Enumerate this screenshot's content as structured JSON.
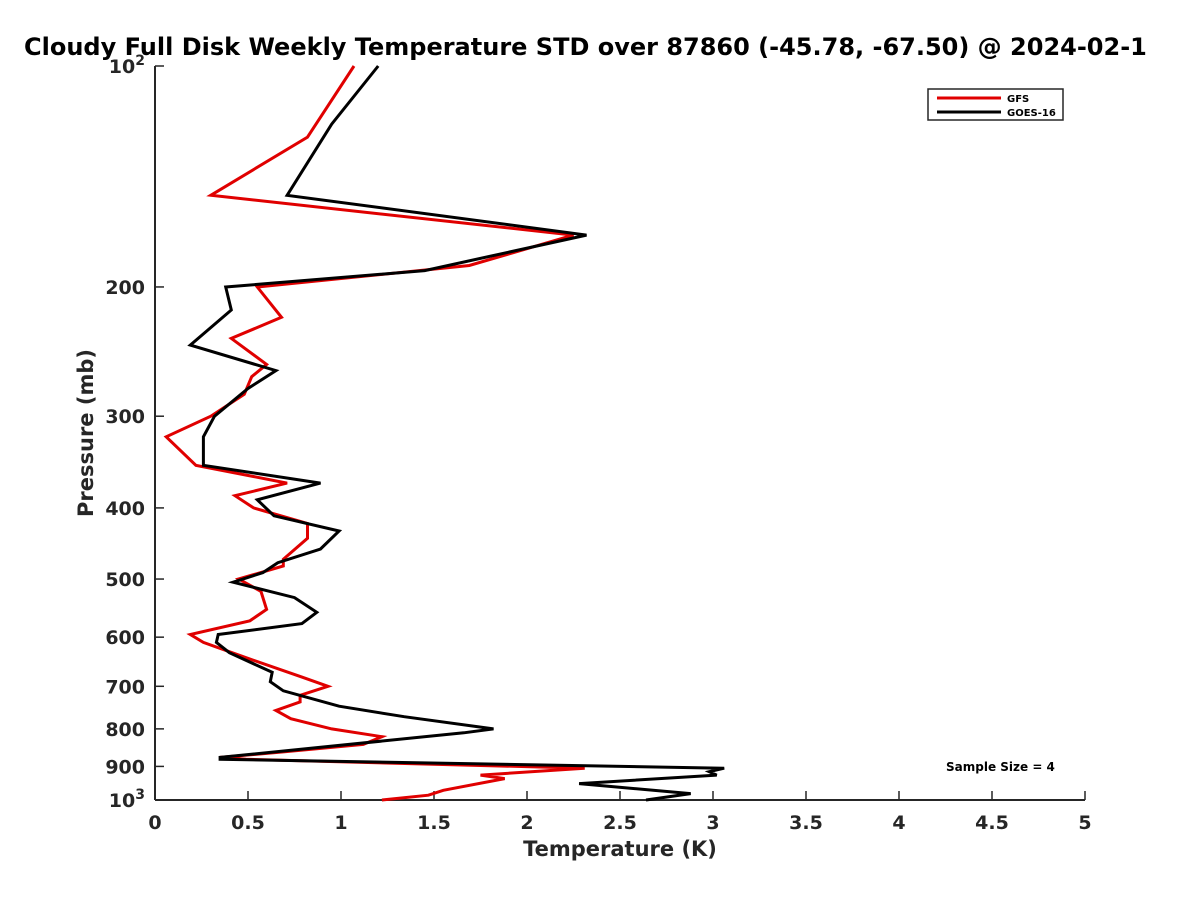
{
  "chart_data": {
    "type": "line",
    "title": "Cloudy Full Disk Weekly Temperature STD over 87860 (-45.78, -67.50) @ 2024-02-1",
    "xlabel": "Temperature (K)",
    "ylabel": "Pressure (mb)",
    "xlim": [
      0,
      5
    ],
    "ylim": [
      100,
      1000
    ],
    "y_scale": "log",
    "y_reversed": true,
    "grid": false,
    "legend_position": "top-right",
    "x_ticks": [
      "0",
      "0.5",
      "1",
      "1.5",
      "2",
      "2.5",
      "3",
      "3.5",
      "4",
      "4.5",
      "5"
    ],
    "x_tick_values": [
      0,
      0.5,
      1,
      1.5,
      2,
      2.5,
      3,
      3.5,
      4,
      4.5,
      5
    ],
    "y_ticks": [
      {
        "value": 100,
        "label": "10",
        "sup": "2"
      },
      {
        "value": 200,
        "label": "200",
        "sup": ""
      },
      {
        "value": 300,
        "label": "300",
        "sup": ""
      },
      {
        "value": 400,
        "label": "400",
        "sup": ""
      },
      {
        "value": 500,
        "label": "500",
        "sup": ""
      },
      {
        "value": 600,
        "label": "600",
        "sup": ""
      },
      {
        "value": 700,
        "label": "700",
        "sup": ""
      },
      {
        "value": 800,
        "label": "800",
        "sup": ""
      },
      {
        "value": 900,
        "label": "900",
        "sup": ""
      },
      {
        "value": 1000,
        "label": "10",
        "sup": "3"
      }
    ],
    "annotation": "Sample Size = 4",
    "series": [
      {
        "name": "GFS",
        "color": "#e00000",
        "points": [
          [
            1.07,
            100
          ],
          [
            0.82,
            125
          ],
          [
            0.3,
            150
          ],
          [
            2.25,
            170
          ],
          [
            1.69,
            187
          ],
          [
            0.55,
            200
          ],
          [
            0.68,
            220
          ],
          [
            0.41,
            235
          ],
          [
            0.6,
            255
          ],
          [
            0.52,
            265
          ],
          [
            0.48,
            280
          ],
          [
            0.3,
            300
          ],
          [
            0.06,
            320
          ],
          [
            0.22,
            350
          ],
          [
            0.71,
            370
          ],
          [
            0.43,
            385
          ],
          [
            0.53,
            400
          ],
          [
            0.82,
            420
          ],
          [
            0.82,
            440
          ],
          [
            0.69,
            470
          ],
          [
            0.69,
            480
          ],
          [
            0.45,
            500
          ],
          [
            0.57,
            520
          ],
          [
            0.6,
            550
          ],
          [
            0.51,
            570
          ],
          [
            0.19,
            595
          ],
          [
            0.26,
            610
          ],
          [
            0.49,
            640
          ],
          [
            0.79,
            680
          ],
          [
            0.93,
            700
          ],
          [
            0.78,
            720
          ],
          [
            0.78,
            735
          ],
          [
            0.65,
            755
          ],
          [
            0.73,
            775
          ],
          [
            0.95,
            800
          ],
          [
            1.22,
            820
          ],
          [
            1.12,
            840
          ],
          [
            0.69,
            860
          ],
          [
            0.35,
            875
          ],
          [
            0.49,
            880
          ],
          [
            2.31,
            905
          ],
          [
            1.75,
            925
          ],
          [
            1.88,
            935
          ],
          [
            1.55,
            970
          ],
          [
            1.47,
            985
          ],
          [
            1.22,
            1000
          ]
        ]
      },
      {
        "name": "GOES-16",
        "color": "#000000",
        "points": [
          [
            1.2,
            100
          ],
          [
            0.95,
            120
          ],
          [
            0.71,
            150
          ],
          [
            2.32,
            170
          ],
          [
            1.45,
            190
          ],
          [
            0.38,
            200
          ],
          [
            0.41,
            215
          ],
          [
            0.19,
            240
          ],
          [
            0.65,
            260
          ],
          [
            0.5,
            275
          ],
          [
            0.32,
            300
          ],
          [
            0.26,
            320
          ],
          [
            0.26,
            350
          ],
          [
            0.89,
            370
          ],
          [
            0.55,
            390
          ],
          [
            0.64,
            410
          ],
          [
            0.99,
            430
          ],
          [
            0.89,
            455
          ],
          [
            0.66,
            475
          ],
          [
            0.58,
            490
          ],
          [
            0.42,
            505
          ],
          [
            0.75,
            530
          ],
          [
            0.87,
            555
          ],
          [
            0.79,
            575
          ],
          [
            0.34,
            595
          ],
          [
            0.33,
            610
          ],
          [
            0.4,
            630
          ],
          [
            0.63,
            670
          ],
          [
            0.62,
            690
          ],
          [
            0.69,
            710
          ],
          [
            0.99,
            745
          ],
          [
            1.34,
            770
          ],
          [
            1.82,
            800
          ],
          [
            1.66,
            810
          ],
          [
            0.35,
            875
          ],
          [
            0.35,
            880
          ],
          [
            3.06,
            905
          ],
          [
            2.98,
            915
          ],
          [
            3.02,
            925
          ],
          [
            2.28,
            950
          ],
          [
            2.88,
            980
          ],
          [
            2.64,
            1000
          ]
        ]
      }
    ]
  }
}
